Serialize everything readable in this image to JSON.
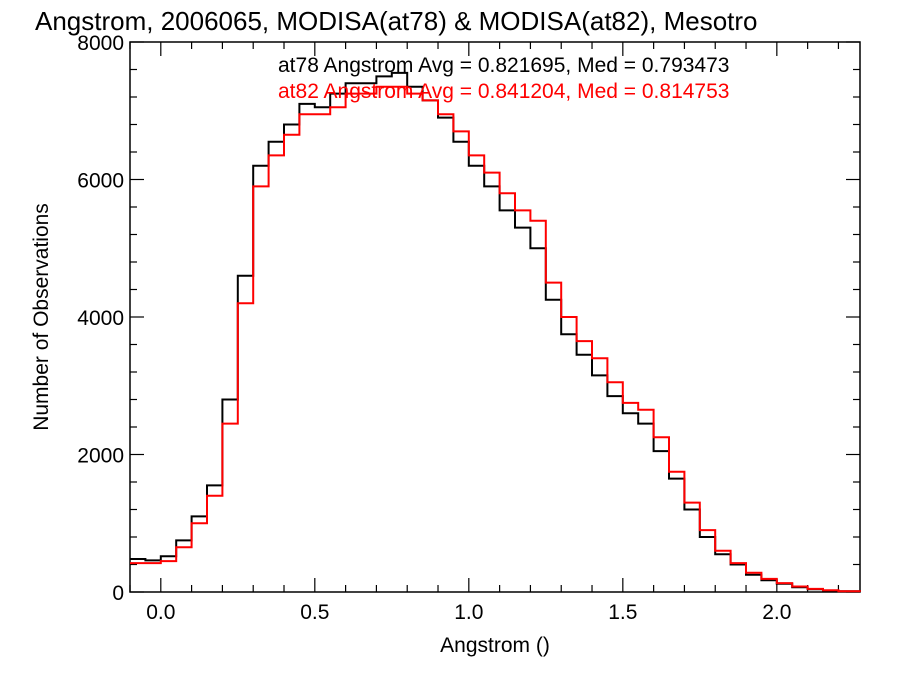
{
  "chart_data": {
    "type": "line",
    "step": true,
    "title": "Angstrom, 2006065, MODISA(at78) & MODISA(at82), Mesotro",
    "xlabel": "Angstrom ()",
    "ylabel": "Number of Observations",
    "xlim": [
      -0.1,
      2.27
    ],
    "ylim": [
      0,
      8000
    ],
    "x_ticks": [
      0.0,
      0.5,
      1.0,
      1.5,
      2.0
    ],
    "x_tick_labels": [
      "0.0",
      "0.5",
      "1.0",
      "1.5",
      "2.0"
    ],
    "y_ticks": [
      0,
      2000,
      4000,
      6000,
      8000
    ],
    "y_tick_labels": [
      "0",
      "2000",
      "4000",
      "6000",
      "8000"
    ],
    "grid": false,
    "legend_position": "top-right",
    "series": [
      {
        "name": "at78",
        "legend_text": "at78 Angstrom Avg = 0.821695, Med = 0.793473",
        "color": "#000000",
        "x": [
          -0.1,
          -0.05,
          0.0,
          0.05,
          0.1,
          0.15,
          0.2,
          0.25,
          0.3,
          0.35,
          0.4,
          0.45,
          0.5,
          0.55,
          0.6,
          0.65,
          0.7,
          0.75,
          0.8,
          0.85,
          0.9,
          0.95,
          1.0,
          1.05,
          1.1,
          1.15,
          1.2,
          1.25,
          1.3,
          1.35,
          1.4,
          1.45,
          1.5,
          1.55,
          1.6,
          1.65,
          1.7,
          1.75,
          1.8,
          1.85,
          1.9,
          1.95,
          2.0,
          2.05,
          2.1,
          2.15,
          2.2,
          2.27
        ],
        "y": [
          480,
          460,
          520,
          750,
          1100,
          1550,
          2800,
          4600,
          6200,
          6550,
          6800,
          7100,
          7050,
          7250,
          7400,
          7400,
          7500,
          7550,
          7350,
          7150,
          6900,
          6550,
          6200,
          5900,
          5550,
          5300,
          5000,
          4250,
          3750,
          3450,
          3150,
          2850,
          2600,
          2450,
          2050,
          1650,
          1200,
          800,
          550,
          400,
          250,
          170,
          120,
          70,
          40,
          20,
          10,
          5
        ]
      },
      {
        "name": "at82",
        "legend_text": "at82 Angstrom Avg = 0.841204, Med = 0.814753",
        "color": "#ff0000",
        "x": [
          -0.1,
          -0.05,
          0.0,
          0.05,
          0.1,
          0.15,
          0.2,
          0.25,
          0.3,
          0.35,
          0.4,
          0.45,
          0.5,
          0.55,
          0.6,
          0.65,
          0.7,
          0.75,
          0.8,
          0.85,
          0.9,
          0.95,
          1.0,
          1.05,
          1.1,
          1.15,
          1.2,
          1.25,
          1.3,
          1.35,
          1.4,
          1.45,
          1.5,
          1.55,
          1.6,
          1.65,
          1.7,
          1.75,
          1.8,
          1.85,
          1.9,
          1.95,
          2.0,
          2.05,
          2.1,
          2.15,
          2.2,
          2.27
        ],
        "y": [
          420,
          420,
          450,
          650,
          1000,
          1400,
          2450,
          4200,
          5900,
          6350,
          6650,
          6950,
          6950,
          7050,
          7250,
          7250,
          7350,
          7350,
          7250,
          7150,
          6950,
          6700,
          6350,
          6100,
          5800,
          5550,
          5400,
          4500,
          4000,
          3650,
          3400,
          3050,
          2750,
          2650,
          2250,
          1750,
          1300,
          900,
          600,
          420,
          280,
          190,
          130,
          80,
          45,
          25,
          12,
          5
        ]
      }
    ]
  }
}
